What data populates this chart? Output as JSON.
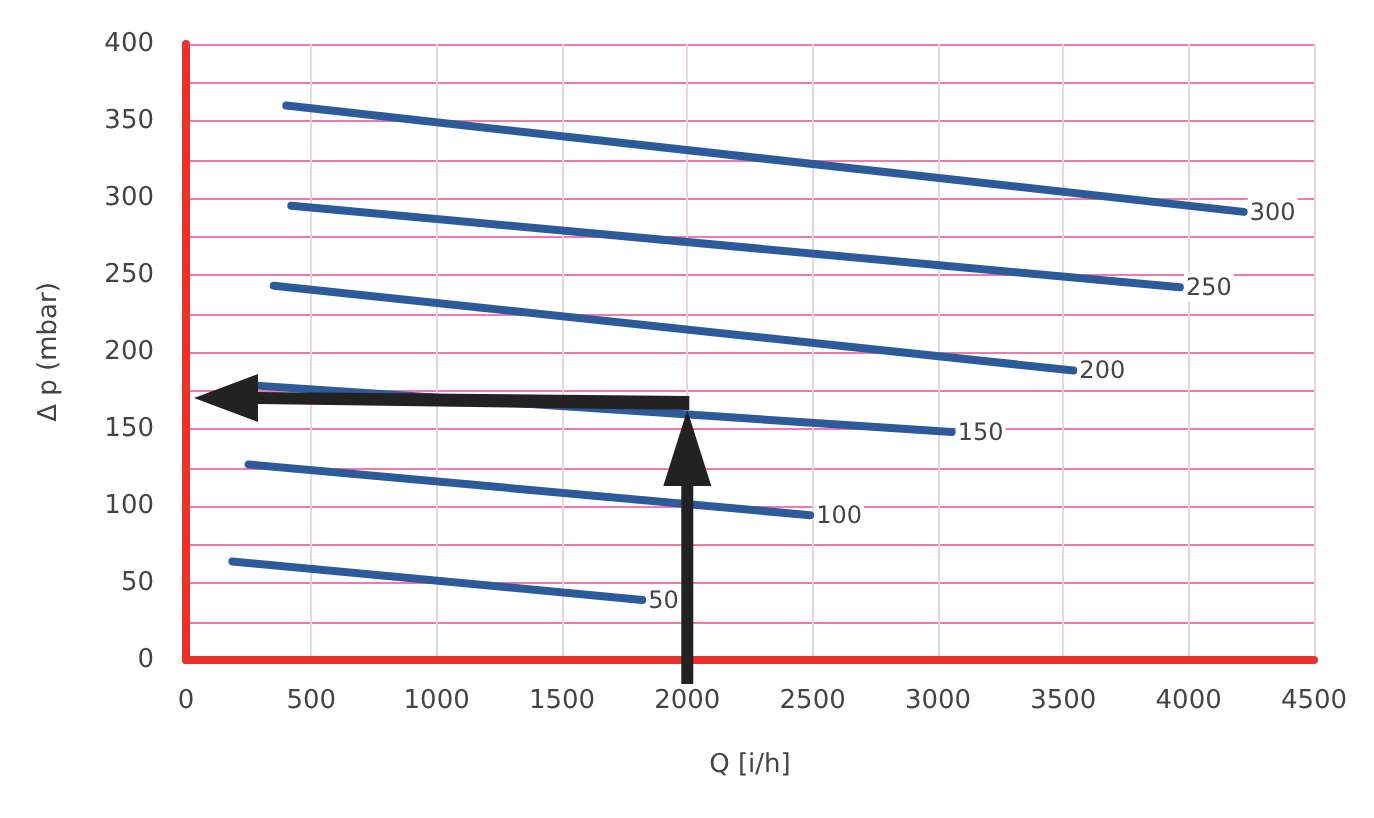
{
  "chart_data": {
    "type": "line",
    "xlabel": "Q [i/h]",
    "ylabel": "Δ p (mbar)",
    "xlim": [
      0,
      4500
    ],
    "xticks": [
      0,
      500,
      1000,
      1500,
      2000,
      2500,
      3000,
      3500,
      4000,
      4500
    ],
    "ylim": [
      0,
      400
    ],
    "yticks": [
      0,
      {
        "value": 25,
        "label": null
      },
      50,
      {
        "value": 75,
        "label": null
      },
      100,
      {
        "value": 125,
        "label": null
      },
      150,
      {
        "value": 175,
        "label": null
      },
      200,
      {
        "value": 225,
        "label": null
      },
      250,
      {
        "value": 275,
        "label": null
      },
      300,
      {
        "value": 325,
        "label": null
      },
      350,
      {
        "value": 375,
        "label": null
      },
      400
    ],
    "grid": true,
    "legend": false,
    "marker": "none",
    "line_style": "solid",
    "series": [
      {
        "name": "300",
        "color": "#2d5a9a",
        "x": [
          400,
          4220
        ],
        "values": [
          360,
          291
        ]
      },
      {
        "name": "250",
        "color": "#2d5a9a",
        "x": [
          420,
          3965
        ],
        "values": [
          295,
          242
        ]
      },
      {
        "name": "200",
        "color": "#2d5a9a",
        "x": [
          350,
          3540
        ],
        "values": [
          243,
          188
        ]
      },
      {
        "name": "150",
        "color": "#2d5a9a",
        "x": [
          295,
          3055
        ],
        "values": [
          178,
          148
        ]
      },
      {
        "name": "100",
        "color": "#2d5a9a",
        "x": [
          250,
          2490
        ],
        "values": [
          127,
          94
        ]
      },
      {
        "name": "50",
        "color": "#2d5a9a",
        "x": [
          185,
          1820
        ],
        "values": [
          64,
          39
        ]
      }
    ]
  }
}
